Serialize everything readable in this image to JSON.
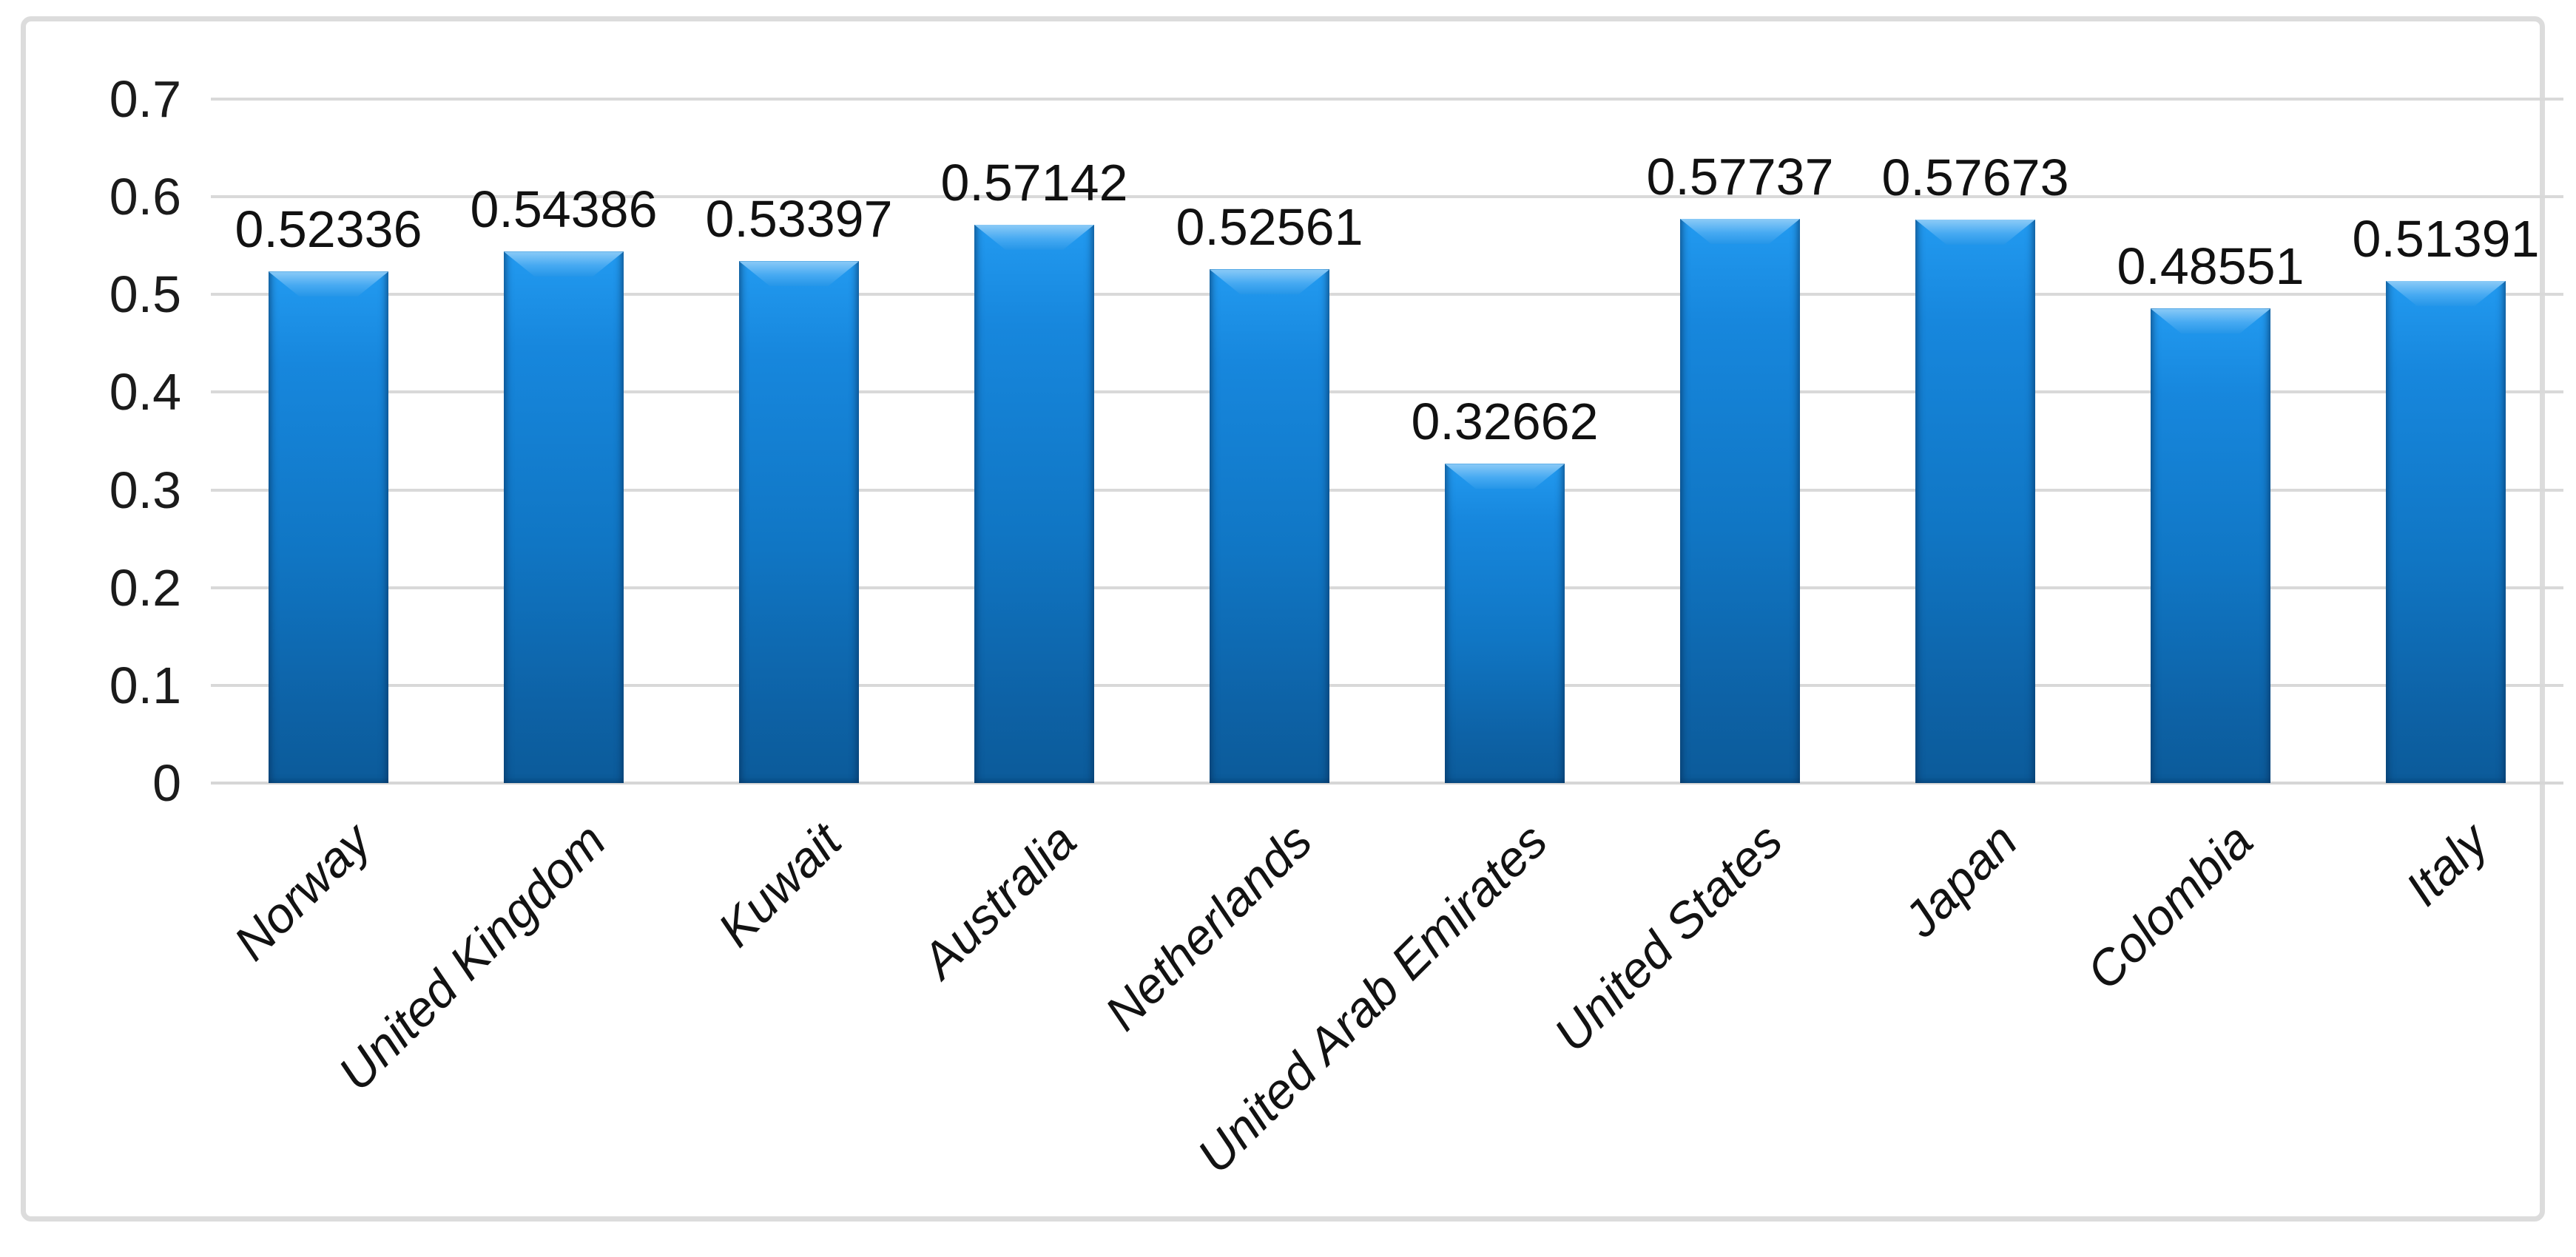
{
  "figure": {
    "background": "#ffffff",
    "border_color": "#dcdcdc"
  },
  "chart_data": {
    "type": "bar",
    "title": "",
    "xlabel": "",
    "ylabel": "",
    "categories": [
      "Norway",
      "United Kingdom",
      "Kuwait",
      "Australia",
      "Netherlands",
      "United Arab Emirates",
      "United States",
      "Japan",
      "Colombia",
      "Italy"
    ],
    "values": [
      0.52336,
      0.54386,
      0.53397,
      0.57142,
      0.52561,
      0.32662,
      0.57737,
      0.57673,
      0.48551,
      0.51391
    ],
    "value_labels": [
      "0.52336",
      "0.54386",
      "0.53397",
      "0.57142",
      "0.52561",
      "0.32662",
      "0.57737",
      "0.57673",
      "0.48551",
      "0.51391"
    ],
    "ylim": [
      0,
      0.7
    ],
    "ytick_step": 0.1,
    "yticks": [
      "0.7",
      "0.6",
      "0.5",
      "0.4",
      "0.3",
      "0.2",
      "0.1",
      "0"
    ],
    "grid": true,
    "legend_position": "none",
    "bar_fill": "#1076c4",
    "bar_fill_top": "#229af0",
    "bar_fill_bottom": "#0c5b9a",
    "bar_bevel_highlight": "#8ccbf7",
    "bar_edge": "#0a4a7e",
    "gridline_color": "#d9d9d9",
    "label_color": "#111111"
  }
}
